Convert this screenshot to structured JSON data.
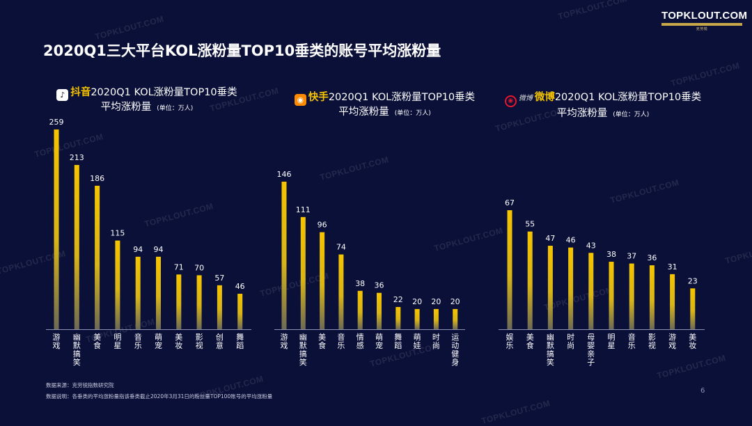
{
  "title": "2020Q1三大平台KOL涨粉量TOP10垂类的账号平均涨粉量",
  "logo": {
    "text": "TOPKLOUT.COM",
    "sub": "克劳锐"
  },
  "watermark": "TOPKLOUT.COM",
  "colors": {
    "background": "#0b1038",
    "bar_top": "#f5c400",
    "bar_bottom": "#6d6a55",
    "brand": "#f5c400"
  },
  "panels": [
    {
      "brand": "抖音",
      "icon": "douyin-icon",
      "title_rest": "2020Q1 KOL涨粉量TOP10垂类",
      "line2": "平均涨粉量",
      "unit": "(单位：万人)"
    },
    {
      "brand": "快手",
      "icon": "kuaishou-icon",
      "title_rest": "2020Q1 KOL涨粉量TOP10垂类",
      "line2": "平均涨粉量",
      "unit": "(单位：万人)"
    },
    {
      "brand": "微博",
      "icon": "weibo-icon",
      "weibo_word": "微博",
      "title_rest": "2020Q1 KOL涨粉量TOP10垂类",
      "line2": "平均涨粉量",
      "unit": "(单位：万人)"
    }
  ],
  "chart_data": [
    {
      "type": "bar",
      "title": "抖音2020Q1 KOL涨粉量TOP10垂类平均涨粉量",
      "ylabel": "单位：万人",
      "categories": [
        "游戏",
        "幽默搞笑",
        "美食",
        "明星",
        "音乐",
        "萌宠",
        "美妆",
        "影视",
        "创意",
        "舞蹈"
      ],
      "values": [
        259,
        213,
        186,
        115,
        94,
        94,
        71,
        70,
        57,
        46
      ],
      "ylim": [
        0,
        259
      ]
    },
    {
      "type": "bar",
      "title": "快手2020Q1 KOL涨粉量TOP10垂类平均涨粉量",
      "ylabel": "单位：万人",
      "categories": [
        "游戏",
        "幽默搞笑",
        "美食",
        "音乐",
        "情感",
        "萌宠",
        "舞蹈",
        "萌娃",
        "时尚",
        "运动健身"
      ],
      "values": [
        146,
        111,
        96,
        74,
        38,
        36,
        22,
        20,
        20,
        20
      ],
      "ylim": [
        0,
        146
      ]
    },
    {
      "type": "bar",
      "title": "微博2020Q1 KOL涨粉量TOP10垂类平均涨粉量",
      "ylabel": "单位：万人",
      "categories": [
        "娱乐",
        "美食",
        "幽默搞笑",
        "时尚",
        "母婴亲子",
        "明星",
        "音乐",
        "影视",
        "游戏",
        "美妆"
      ],
      "values": [
        67,
        55,
        47,
        46,
        43,
        38,
        37,
        36,
        31,
        23
      ],
      "ylim": [
        0,
        67
      ]
    }
  ],
  "footnotes": {
    "source": "数据来源：克劳锐指数研究院",
    "note": "数据说明：各垂类的平均涨粉量指该垂类截止2020年3月31日的粉丝量TOP100账号的平均涨粉量"
  },
  "page_number": "6"
}
